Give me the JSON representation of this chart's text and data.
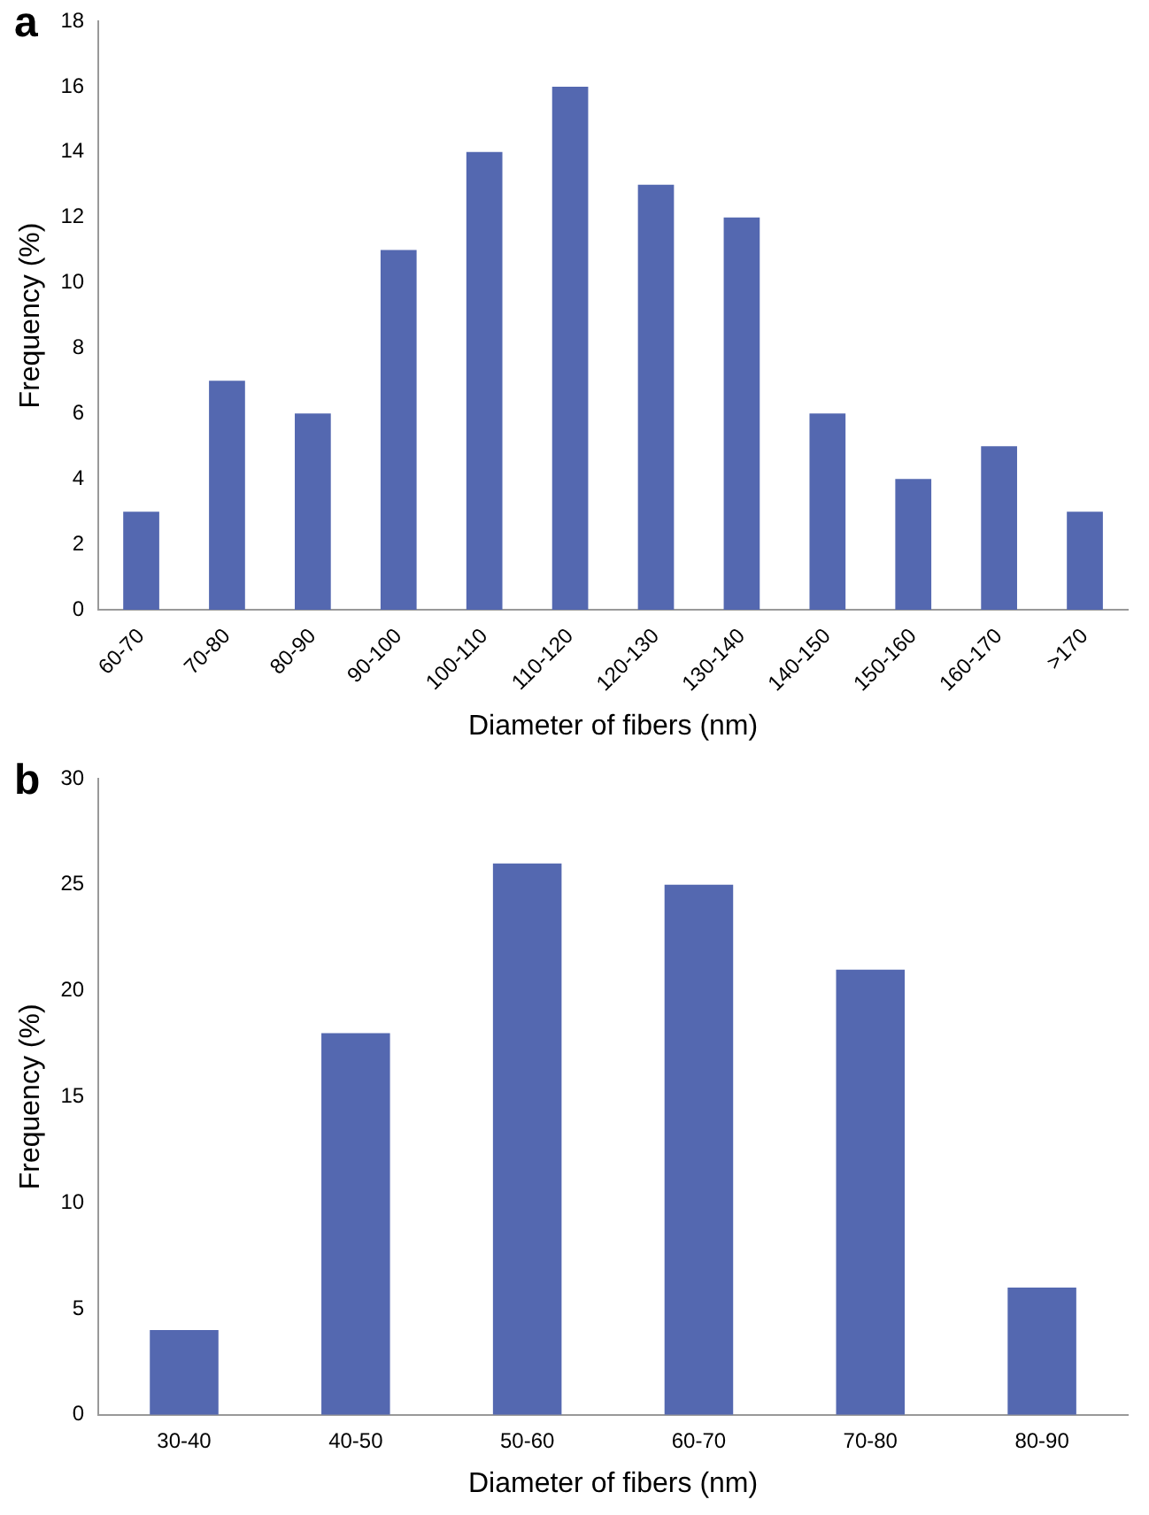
{
  "chart_data": [
    {
      "type": "bar",
      "title": "a",
      "xlabel": "Diameter of fibers (nm)",
      "ylabel": "Frequency (%)",
      "categories": [
        "60-70",
        "70-80",
        "80-90",
        "90-100",
        "100-110",
        "110-120",
        "120-130",
        "130-140",
        "140-150",
        "150-160",
        "160-170",
        ">170"
      ],
      "values": [
        3,
        7,
        6,
        11,
        14,
        16,
        13,
        12,
        6,
        4,
        5,
        3
      ],
      "color": "#5468b0",
      "ylim": [
        0,
        18
      ],
      "yticks": [
        0,
        2,
        4,
        6,
        8,
        10,
        12,
        14,
        16,
        18
      ],
      "grid": false
    },
    {
      "type": "bar",
      "title": "b",
      "xlabel": "Diameter of fibers (nm)",
      "ylabel": "Frequency (%)",
      "categories": [
        "30-40",
        "40-50",
        "50-60",
        "60-70",
        "70-80",
        "80-90"
      ],
      "values": [
        4,
        18,
        26,
        25,
        21,
        6
      ],
      "color": "#5468b0",
      "ylim": [
        0,
        30
      ],
      "yticks": [
        0,
        5,
        10,
        15,
        20,
        25,
        30
      ],
      "grid": false
    }
  ]
}
